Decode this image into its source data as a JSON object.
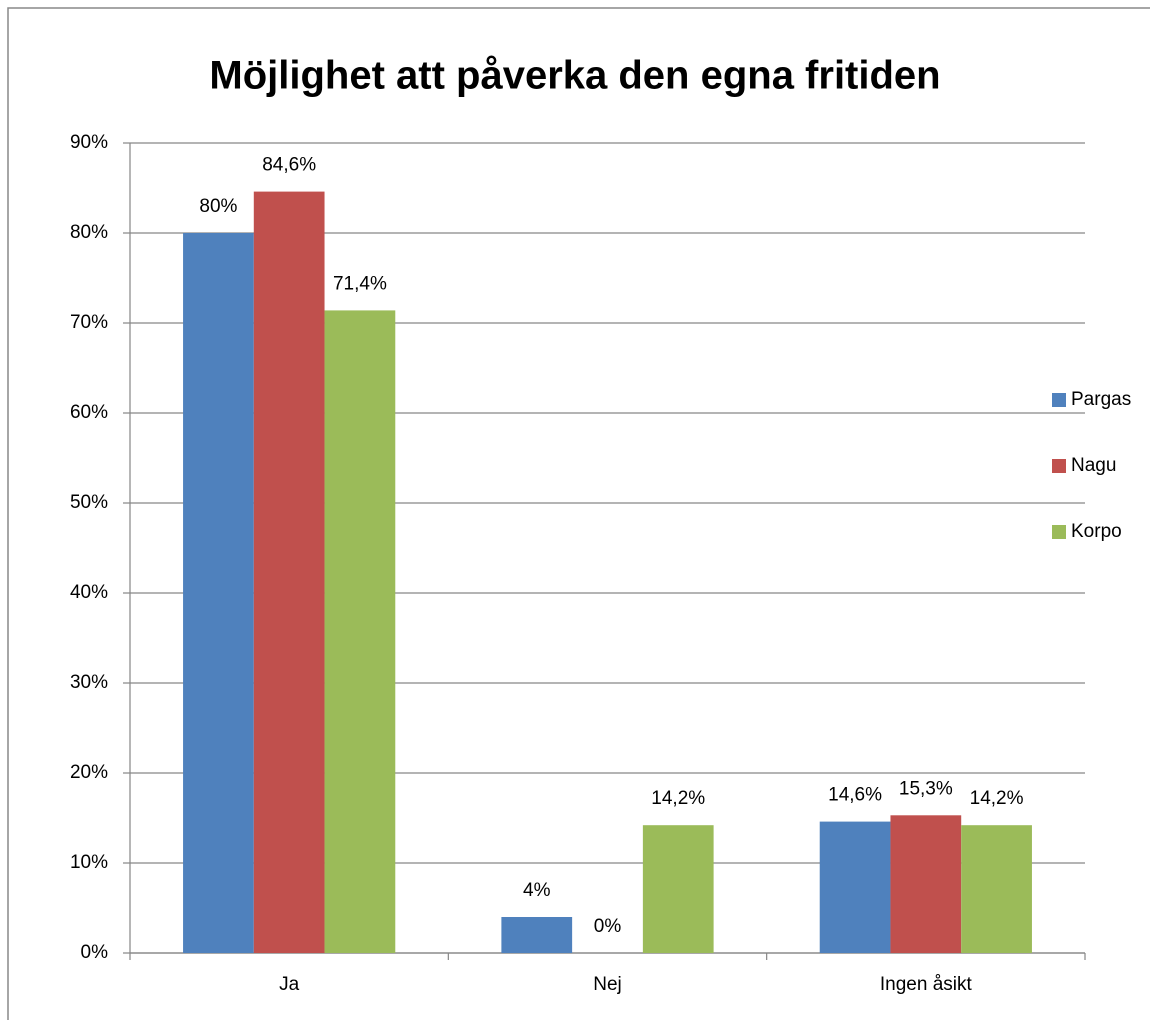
{
  "chart_data": {
    "type": "bar",
    "title": "Möjlighet att påverka den egna fritiden",
    "categories": [
      "Ja",
      "Nej",
      "Ingen åsikt"
    ],
    "series": [
      {
        "name": "Pargas",
        "color": "#4f81bd",
        "values": [
          80,
          4,
          14.6
        ],
        "value_labels": [
          "80%",
          "4%",
          "14,6%"
        ]
      },
      {
        "name": "Nagu",
        "color": "#c0504d",
        "values": [
          84.6,
          0,
          15.3
        ],
        "value_labels": [
          "84,6%",
          "0%",
          "15,3%"
        ]
      },
      {
        "name": "Korpo",
        "color": "#9bbb59",
        "values": [
          71.4,
          14.2,
          14.2
        ],
        "value_labels": [
          "71,4%",
          "14,2%",
          "14,2%"
        ]
      }
    ],
    "ylim": [
      0,
      90
    ],
    "yticks": [
      {
        "value": 0,
        "label": "0%"
      },
      {
        "value": 10,
        "label": "10%"
      },
      {
        "value": 20,
        "label": "20%"
      },
      {
        "value": 30,
        "label": "30%"
      },
      {
        "value": 40,
        "label": "40%"
      },
      {
        "value": 50,
        "label": "50%"
      },
      {
        "value": 60,
        "label": "60%"
      },
      {
        "value": 70,
        "label": "70%"
      },
      {
        "value": 80,
        "label": "80%"
      },
      {
        "value": 90,
        "label": "90%"
      }
    ],
    "grid": true,
    "legend": "right"
  }
}
